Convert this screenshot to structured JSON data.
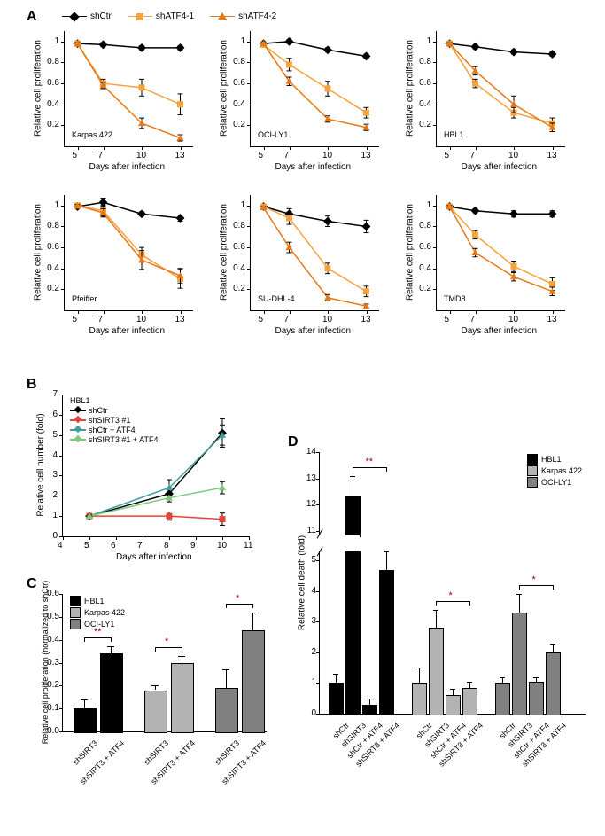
{
  "panelA": {
    "label": "A",
    "legend": [
      {
        "name": "shCtr",
        "color": "#000000",
        "marker": "diamond"
      },
      {
        "name": "shATF4-1",
        "color": "#f7a23b",
        "marker": "square"
      },
      {
        "name": "shATF4-2",
        "color": "#e87817",
        "marker": "triangle"
      }
    ],
    "x_title": "Days after infection",
    "y_title": "Relative cell proliferation",
    "xlim": [
      4,
      14
    ],
    "ylim": [
      0,
      1.1
    ],
    "xticks": [
      5,
      7,
      10,
      13
    ],
    "yticks": [
      0.2,
      0.4,
      0.6,
      0.8,
      1.0
    ],
    "charts": [
      {
        "name": "Karpas 422",
        "series": {
          "shCtr": {
            "x": [
              5,
              7,
              10,
              13
            ],
            "y": [
              0.98,
              0.97,
              0.94,
              0.94
            ],
            "err": [
              0.01,
              0.02,
              0.02,
              0.02
            ],
            "color": "#000000"
          },
          "shATF4-1": {
            "x": [
              5,
              7,
              10,
              13
            ],
            "y": [
              0.98,
              0.6,
              0.56,
              0.4
            ],
            "err": [
              0.01,
              0.04,
              0.08,
              0.1
            ],
            "color": "#f7a23b"
          },
          "shATF4-2": {
            "x": [
              5,
              7,
              10,
              13
            ],
            "y": [
              0.98,
              0.58,
              0.22,
              0.08
            ],
            "err": [
              0.01,
              0.03,
              0.05,
              0.03
            ],
            "color": "#e87817"
          }
        }
      },
      {
        "name": "OCI-LY1",
        "series": {
          "shCtr": {
            "x": [
              5,
              7,
              10,
              13
            ],
            "y": [
              0.98,
              1.0,
              0.92,
              0.86
            ],
            "err": [
              0.01,
              0.02,
              0.02,
              0.02
            ],
            "color": "#000000"
          },
          "shATF4-1": {
            "x": [
              5,
              7,
              10,
              13
            ],
            "y": [
              0.97,
              0.78,
              0.55,
              0.32
            ],
            "err": [
              0.01,
              0.06,
              0.07,
              0.05
            ],
            "color": "#f7a23b"
          },
          "shATF4-2": {
            "x": [
              5,
              7,
              10,
              13
            ],
            "y": [
              0.98,
              0.62,
              0.26,
              0.18
            ],
            "err": [
              0.01,
              0.04,
              0.03,
              0.03
            ],
            "color": "#e87817"
          }
        }
      },
      {
        "name": "HBL1",
        "series": {
          "shCtr": {
            "x": [
              5,
              7,
              10,
              13
            ],
            "y": [
              0.98,
              0.95,
              0.9,
              0.88
            ],
            "err": [
              0.01,
              0.02,
              0.02,
              0.02
            ],
            "color": "#000000"
          },
          "shATF4-1": {
            "x": [
              5,
              7,
              10,
              13
            ],
            "y": [
              0.98,
              0.6,
              0.32,
              0.22
            ],
            "err": [
              0.01,
              0.04,
              0.05,
              0.05
            ],
            "color": "#f7a23b"
          },
          "shATF4-2": {
            "x": [
              5,
              7,
              10,
              13
            ],
            "y": [
              0.98,
              0.72,
              0.4,
              0.18
            ],
            "err": [
              0.01,
              0.04,
              0.08,
              0.04
            ],
            "color": "#e87817"
          }
        }
      },
      {
        "name": "Pfeiffer",
        "series": {
          "shCtr": {
            "x": [
              5,
              7,
              10,
              13
            ],
            "y": [
              0.99,
              1.03,
              0.92,
              0.88
            ],
            "err": [
              0.01,
              0.04,
              0.02,
              0.03
            ],
            "color": "#000000"
          },
          "shATF4-1": {
            "x": [
              5,
              7,
              10,
              13
            ],
            "y": [
              1.0,
              0.95,
              0.53,
              0.3
            ],
            "err": [
              0.01,
              0.05,
              0.07,
              0.09
            ],
            "color": "#f7a23b"
          },
          "shATF4-2": {
            "x": [
              5,
              7,
              10,
              13
            ],
            "y": [
              1.0,
              0.93,
              0.48,
              0.33
            ],
            "err": [
              0.01,
              0.04,
              0.09,
              0.07
            ],
            "color": "#e87817"
          }
        }
      },
      {
        "name": "SU-DHL-4",
        "series": {
          "shCtr": {
            "x": [
              5,
              7,
              10,
              13
            ],
            "y": [
              0.99,
              0.92,
              0.85,
              0.8
            ],
            "err": [
              0.01,
              0.05,
              0.05,
              0.06
            ],
            "color": "#000000"
          },
          "shATF4-1": {
            "x": [
              5,
              7,
              10,
              13
            ],
            "y": [
              0.99,
              0.88,
              0.4,
              0.18
            ],
            "err": [
              0.01,
              0.06,
              0.05,
              0.05
            ],
            "color": "#f7a23b"
          },
          "shATF4-2": {
            "x": [
              5,
              7,
              10,
              13
            ],
            "y": [
              0.98,
              0.6,
              0.12,
              0.04
            ],
            "err": [
              0.01,
              0.05,
              0.03,
              0.02
            ],
            "color": "#e87817"
          }
        }
      },
      {
        "name": "TMD8",
        "series": {
          "shCtr": {
            "x": [
              5,
              7,
              10,
              13
            ],
            "y": [
              0.99,
              0.95,
              0.92,
              0.92
            ],
            "err": [
              0.01,
              0.02,
              0.03,
              0.03
            ],
            "color": "#000000"
          },
          "shATF4-1": {
            "x": [
              5,
              7,
              10,
              13
            ],
            "y": [
              0.99,
              0.72,
              0.42,
              0.25
            ],
            "err": [
              0.01,
              0.04,
              0.05,
              0.06
            ],
            "color": "#f7a23b"
          },
          "shATF4-2": {
            "x": [
              5,
              7,
              10,
              13
            ],
            "y": [
              0.99,
              0.55,
              0.32,
              0.18
            ],
            "err": [
              0.01,
              0.04,
              0.04,
              0.04
            ],
            "color": "#e87817"
          }
        }
      }
    ]
  },
  "panelB": {
    "label": "B",
    "chart_title": "HBL1",
    "x_title": "Days after infection",
    "y_title": "Relative cell number (fold)",
    "xlim": [
      4,
      11
    ],
    "ylim": [
      0,
      7
    ],
    "xticks": [
      4,
      5,
      6,
      7,
      8,
      9,
      10,
      11
    ],
    "yticks": [
      0,
      1,
      2,
      3,
      4,
      5,
      6,
      7
    ],
    "legend": [
      {
        "name": "shCtr",
        "color": "#000000"
      },
      {
        "name": "shSIRT3 #1",
        "color": "#e8433a"
      },
      {
        "name": "shCtr + ATF4",
        "color": "#3aa0a0"
      },
      {
        "name": "shSIRT3 #1 + ATF4",
        "color": "#7cc97c"
      }
    ],
    "series": {
      "shCtr": {
        "x": [
          5,
          8,
          10
        ],
        "y": [
          1.0,
          2.1,
          5.1
        ],
        "err": [
          0.05,
          0.3,
          0.7
        ],
        "color": "#000000"
      },
      "shSIRT3_1": {
        "x": [
          5,
          8,
          10
        ],
        "y": [
          1.0,
          1.0,
          0.85
        ],
        "err": [
          0.05,
          0.2,
          0.3
        ],
        "color": "#e8433a"
      },
      "shCtr_ATF4": {
        "x": [
          5,
          8,
          10
        ],
        "y": [
          1.0,
          2.4,
          5.0
        ],
        "err": [
          0.05,
          0.4,
          0.5
        ],
        "color": "#3aa0a0"
      },
      "shSIRT3_ATF4": {
        "x": [
          5,
          8,
          10
        ],
        "y": [
          1.0,
          1.9,
          2.4
        ],
        "err": [
          0.05,
          0.2,
          0.3
        ],
        "color": "#7cc97c"
      }
    }
  },
  "panelC": {
    "label": "C",
    "y_title": "Relative cell proliferation (normalized to shCtr)",
    "ylim": [
      0,
      0.6
    ],
    "yticks": [
      0,
      0.1,
      0.2,
      0.3,
      0.4,
      0.5,
      0.6
    ],
    "legend": [
      {
        "name": "HBL1",
        "color": "#000000"
      },
      {
        "name": "Karpas 422",
        "color": "#b3b3b3"
      },
      {
        "name": "OCI-LY1",
        "color": "#808080"
      }
    ],
    "groups": [
      {
        "cell": "HBL1",
        "color": "#000000",
        "bars": [
          {
            "label": "shSIRT3",
            "y": 0.1,
            "err": 0.04
          },
          {
            "label": "shSIRT3 + ATF4",
            "y": 0.34,
            "err": 0.03
          }
        ],
        "sig": "**",
        "sig_color": "#b00000"
      },
      {
        "cell": "Karpas 422",
        "color": "#b3b3b3",
        "bars": [
          {
            "label": "shSIRT3",
            "y": 0.18,
            "err": 0.02
          },
          {
            "label": "shSIRT3 + ATF4",
            "y": 0.3,
            "err": 0.03
          }
        ],
        "sig": "*",
        "sig_color": "#b00000"
      },
      {
        "cell": "OCI-LY1",
        "color": "#808080",
        "bars": [
          {
            "label": "shSIRT3",
            "y": 0.19,
            "err": 0.08
          },
          {
            "label": "shSIRT3 + ATF4",
            "y": 0.44,
            "err": 0.08
          }
        ],
        "sig": "*",
        "sig_color": "#b00000"
      }
    ]
  },
  "panelD": {
    "label": "D",
    "y_title": "Relative cell death  (fold)",
    "ylim": [
      0,
      14
    ],
    "yticks": [
      0,
      1,
      2,
      3,
      4,
      5,
      11,
      12,
      13,
      14
    ],
    "legend": [
      {
        "name": "HBL1",
        "color": "#000000"
      },
      {
        "name": "Karpas 422",
        "color": "#b3b3b3"
      },
      {
        "name": "OCI-LY1",
        "color": "#808080"
      }
    ],
    "x_labels": [
      "shCtr",
      "shSIRT3",
      "shCtr + ATF4",
      "shSIRT3 + ATF4"
    ],
    "groups": [
      {
        "cell": "HBL1",
        "color": "#000000",
        "bars": [
          {
            "y": 1.0,
            "err": 0.3
          },
          {
            "y": 12.3,
            "err": 0.8
          },
          {
            "y": 0.3,
            "err": 0.2
          },
          {
            "y": 4.7,
            "err": 0.6
          }
        ],
        "sig": "**",
        "sig_between": [
          1,
          3
        ],
        "sig_color": "#b00000"
      },
      {
        "cell": "Karpas 422",
        "color": "#b3b3b3",
        "bars": [
          {
            "y": 1.0,
            "err": 0.5
          },
          {
            "y": 2.8,
            "err": 0.6
          },
          {
            "y": 0.6,
            "err": 0.2
          },
          {
            "y": 0.85,
            "err": 0.2
          }
        ],
        "sig": "*",
        "sig_between": [
          1,
          3
        ],
        "sig_color": "#b00000"
      },
      {
        "cell": "OCI-LY1",
        "color": "#808080",
        "bars": [
          {
            "y": 1.0,
            "err": 0.2
          },
          {
            "y": 3.3,
            "err": 0.6
          },
          {
            "y": 1.05,
            "err": 0.15
          },
          {
            "y": 2.0,
            "err": 0.3
          }
        ],
        "sig": "*",
        "sig_between": [
          1,
          3
        ],
        "sig_color": "#b00000"
      }
    ]
  }
}
